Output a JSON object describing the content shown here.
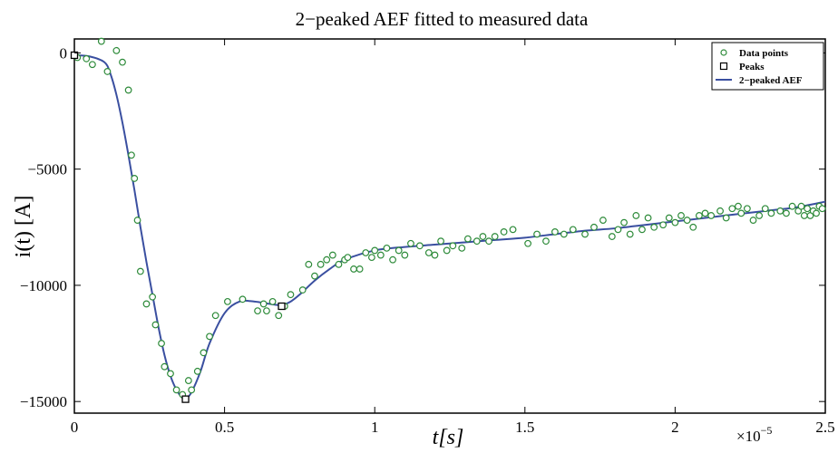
{
  "chart_data": {
    "type": "scatter",
    "title": "2−peaked AEF fitted to measured data",
    "xlabel": "t[s]",
    "ylabel": "i(t) [A]",
    "x_multiplier_label": "×10",
    "x_multiplier_exp": "−5",
    "xlim": [
      0,
      2.5
    ],
    "ylim": [
      -15500,
      600
    ],
    "x_ticks": [
      0,
      0.5,
      1,
      1.5,
      2,
      2.5
    ],
    "x_tick_labels": [
      "0",
      "0.5",
      "1",
      "1.5",
      "2",
      "2.5"
    ],
    "y_ticks": [
      0,
      -5000,
      -10000,
      -15000
    ],
    "y_tick_labels": [
      "0",
      "−5000",
      "−10000",
      "−15000"
    ],
    "grid": false,
    "legend_position": "top-right",
    "colors": {
      "data": "#2e8b3a",
      "fit": "#3a4fa0",
      "peaks": "#000000"
    },
    "series": [
      {
        "name": "Data points",
        "kind": "scatter",
        "x": [
          0.01,
          0.04,
          0.06,
          0.09,
          0.11,
          0.14,
          0.16,
          0.18,
          0.19,
          0.2,
          0.21,
          0.22,
          0.24,
          0.26,
          0.27,
          0.29,
          0.3,
          0.32,
          0.34,
          0.36,
          0.38,
          0.39,
          0.41,
          0.43,
          0.45,
          0.47,
          0.51,
          0.56,
          0.61,
          0.63,
          0.64,
          0.66,
          0.68,
          0.7,
          0.72,
          0.76,
          0.78,
          0.8,
          0.82,
          0.84,
          0.86,
          0.88,
          0.9,
          0.91,
          0.93,
          0.95,
          0.97,
          0.99,
          1.0,
          1.02,
          1.04,
          1.06,
          1.08,
          1.1,
          1.12,
          1.15,
          1.18,
          1.2,
          1.22,
          1.24,
          1.26,
          1.29,
          1.31,
          1.34,
          1.36,
          1.38,
          1.4,
          1.43,
          1.46,
          1.51,
          1.54,
          1.57,
          1.6,
          1.63,
          1.66,
          1.7,
          1.73,
          1.76,
          1.79,
          1.81,
          1.83,
          1.85,
          1.87,
          1.89,
          1.91,
          1.93,
          1.96,
          1.98,
          2.0,
          2.02,
          2.04,
          2.06,
          2.08,
          2.1,
          2.12,
          2.15,
          2.17,
          2.19,
          2.21,
          2.22,
          2.24,
          2.26,
          2.28,
          2.3,
          2.32,
          2.35,
          2.37,
          2.39,
          2.41,
          2.42,
          2.43,
          2.44,
          2.45,
          2.46,
          2.47,
          2.48,
          2.49
        ],
        "y": [
          -200,
          -250,
          -500,
          500,
          -800,
          100,
          -400,
          -1600,
          -4400,
          -5400,
          -7200,
          -9400,
          -10800,
          -10500,
          -11700,
          -12500,
          -13500,
          -13800,
          -14500,
          -14700,
          -14100,
          -14500,
          -13700,
          -12900,
          -12200,
          -11300,
          -10700,
          -10600,
          -11100,
          -10800,
          -11100,
          -10700,
          -11300,
          -10900,
          -10400,
          -10200,
          -9100,
          -9600,
          -9100,
          -8900,
          -8700,
          -9100,
          -8900,
          -8800,
          -9300,
          -9300,
          -8600,
          -8800,
          -8500,
          -8700,
          -8400,
          -8900,
          -8500,
          -8700,
          -8200,
          -8300,
          -8600,
          -8700,
          -8100,
          -8500,
          -8300,
          -8400,
          -8000,
          -8100,
          -7900,
          -8100,
          -7900,
          -7700,
          -7600,
          -8200,
          -7800,
          -8100,
          -7700,
          -7800,
          -7600,
          -7800,
          -7500,
          -7200,
          -7900,
          -7600,
          -7300,
          -7800,
          -7000,
          -7600,
          -7100,
          -7500,
          -7400,
          -7100,
          -7300,
          -7000,
          -7200,
          -7500,
          -7000,
          -6900,
          -7000,
          -6800,
          -7100,
          -6700,
          -6600,
          -6900,
          -6700,
          -7200,
          -7000,
          -6700,
          -6900,
          -6800,
          -6900,
          -6600,
          -6800,
          -6600,
          -7000,
          -6700,
          -7000,
          -6800,
          -6900,
          -6600,
          -6700
        ]
      },
      {
        "name": "Peaks",
        "kind": "scatter",
        "x": [
          0,
          0.37,
          0.69
        ],
        "y": [
          -100,
          -14900,
          -10900
        ]
      },
      {
        "name": "2−peaked AEF",
        "kind": "line",
        "x": [
          0,
          0.05,
          0.1,
          0.12,
          0.14,
          0.16,
          0.18,
          0.2,
          0.22,
          0.24,
          0.26,
          0.28,
          0.3,
          0.32,
          0.34,
          0.36,
          0.37,
          0.39,
          0.42,
          0.45,
          0.5,
          0.55,
          0.6,
          0.65,
          0.69,
          0.72,
          0.75,
          0.8,
          0.85,
          0.9,
          1.0,
          1.1,
          1.2,
          1.3,
          1.4,
          1.5,
          1.6,
          1.7,
          1.8,
          1.9,
          2.0,
          2.1,
          2.2,
          2.3,
          2.4,
          2.5
        ],
        "y": [
          -100,
          -150,
          -400,
          -900,
          -1800,
          -3000,
          -4400,
          -5900,
          -7500,
          -9000,
          -10400,
          -11800,
          -13000,
          -13900,
          -14500,
          -14850,
          -14900,
          -14600,
          -13700,
          -12500,
          -11200,
          -10700,
          -10700,
          -10800,
          -10850,
          -10700,
          -10400,
          -9800,
          -9300,
          -8900,
          -8500,
          -8350,
          -8250,
          -8150,
          -8050,
          -7950,
          -7800,
          -7650,
          -7550,
          -7400,
          -7250,
          -7100,
          -6950,
          -6800,
          -6650,
          -6400
        ]
      }
    ]
  }
}
